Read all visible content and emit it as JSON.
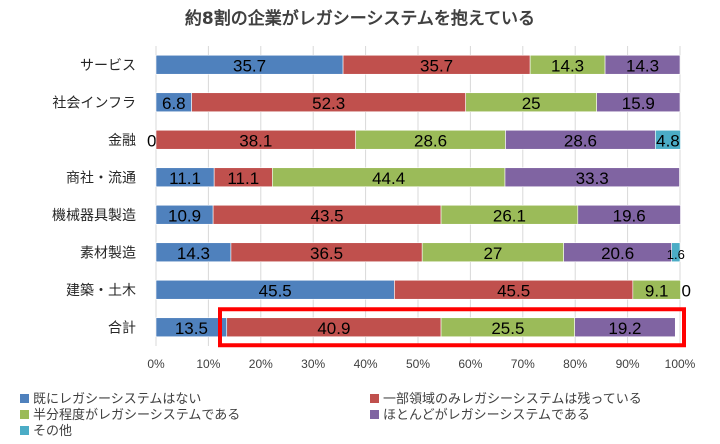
{
  "chart_data": {
    "type": "bar",
    "orientation": "horizontal",
    "stacked": "percent",
    "title": "約8割の企業がレガシーシステムを抱えている",
    "xlabel": "",
    "ylabel": "",
    "xlim": [
      0,
      100
    ],
    "x_ticks": [
      "0%",
      "10%",
      "20%",
      "30%",
      "40%",
      "50%",
      "60%",
      "70%",
      "80%",
      "90%",
      "100%"
    ],
    "grid": true,
    "categories": [
      "サービス",
      "社会インフラ",
      "金融",
      "商社・流通",
      "機械器具製造",
      "素材製造",
      "建築・土木",
      "合計"
    ],
    "series": [
      {
        "name": "既にレガシーシステムはない",
        "color": "#4f81bd",
        "values": [
          35.7,
          6.8,
          0,
          11.1,
          10.9,
          14.3,
          45.5,
          13.5
        ],
        "labels": [
          "35.7",
          "6.8",
          "0",
          "11.1",
          "10.9",
          "14.3",
          "45.5",
          "13.5"
        ]
      },
      {
        "name": "一部領域のみレガシーシステムは残っている",
        "color": "#c0504d",
        "values": [
          35.7,
          52.3,
          38.1,
          11.1,
          43.5,
          36.5,
          45.5,
          40.9
        ],
        "labels": [
          "35.7",
          "52.3",
          "38.1",
          "11.1",
          "43.5",
          "36.5",
          "45.5",
          "40.9"
        ]
      },
      {
        "name": "半分程度がレガシーシステムである",
        "color": "#9bbb59",
        "values": [
          14.3,
          25,
          28.6,
          44.4,
          26.1,
          27,
          9.1,
          25.5
        ],
        "labels": [
          "14.3",
          "25",
          "28.6",
          "44.4",
          "26.1",
          "27",
          "9.1",
          "25.5"
        ]
      },
      {
        "name": "ほとんどがレガシーシステムである",
        "color": "#8064a2",
        "values": [
          14.3,
          15.9,
          28.6,
          33.3,
          19.6,
          20.6,
          0,
          19.2
        ],
        "labels": [
          "14.3",
          "15.9",
          "28.6",
          "33.3",
          "19.6",
          "20.6",
          "0",
          "19.2"
        ]
      },
      {
        "name": "その他",
        "color": "#4bacc6",
        "values": [
          0,
          0,
          4.8,
          0,
          0,
          1.6,
          0,
          0
        ],
        "labels": [
          "",
          "",
          "4.8",
          "",
          "",
          "1.6",
          "",
          ""
        ]
      }
    ],
    "highlight": {
      "category": "合計",
      "color": "#ff0000"
    }
  }
}
